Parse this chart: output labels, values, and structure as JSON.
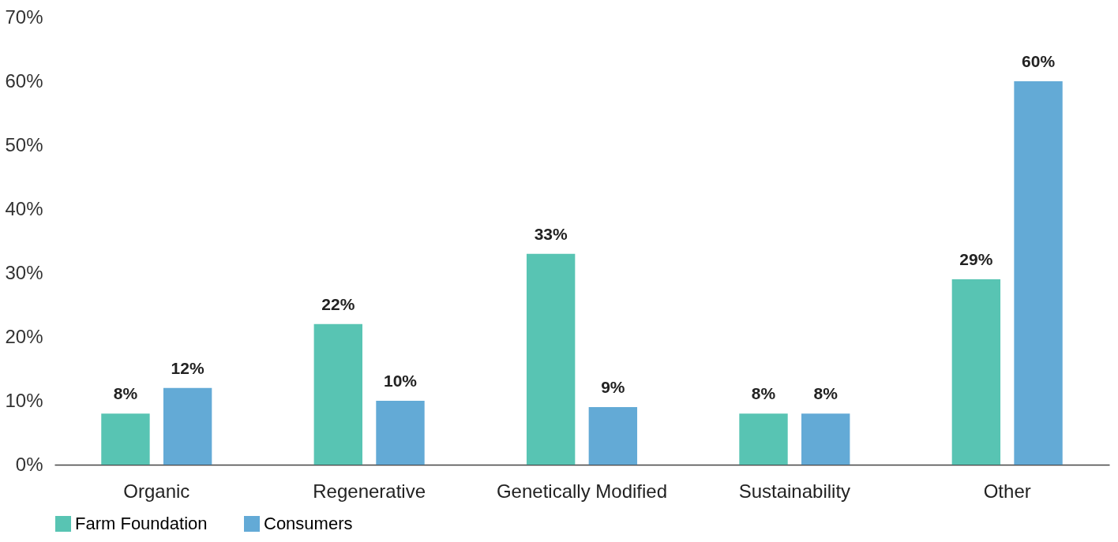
{
  "chart_data": {
    "type": "bar",
    "categories": [
      "Organic",
      "Regenerative",
      "Genetically Modified",
      "Sustainability",
      "Other"
    ],
    "series": [
      {
        "name": "Farm Foundation",
        "color": "#58c4b3",
        "values": [
          8,
          22,
          33,
          8,
          29
        ],
        "value_labels": [
          "8%",
          "22%",
          "33%",
          "8%",
          "29%"
        ]
      },
      {
        "name": "Consumers",
        "color": "#63aad6",
        "values": [
          12,
          10,
          9,
          8,
          60
        ],
        "value_labels": [
          "12%",
          "10%",
          "9%",
          "8%",
          "60%"
        ]
      }
    ],
    "ylim": [
      0,
      70
    ],
    "yticks": [
      {
        "value": 0,
        "label": "0%"
      },
      {
        "value": 10,
        "label": "10%"
      },
      {
        "value": 20,
        "label": "20%"
      },
      {
        "value": 30,
        "label": "30%"
      },
      {
        "value": 40,
        "label": "40%"
      },
      {
        "value": 50,
        "label": "50%"
      },
      {
        "value": 60,
        "label": "60%"
      },
      {
        "value": 70,
        "label": "70%"
      }
    ],
    "grid": false,
    "legend": "bottom"
  }
}
